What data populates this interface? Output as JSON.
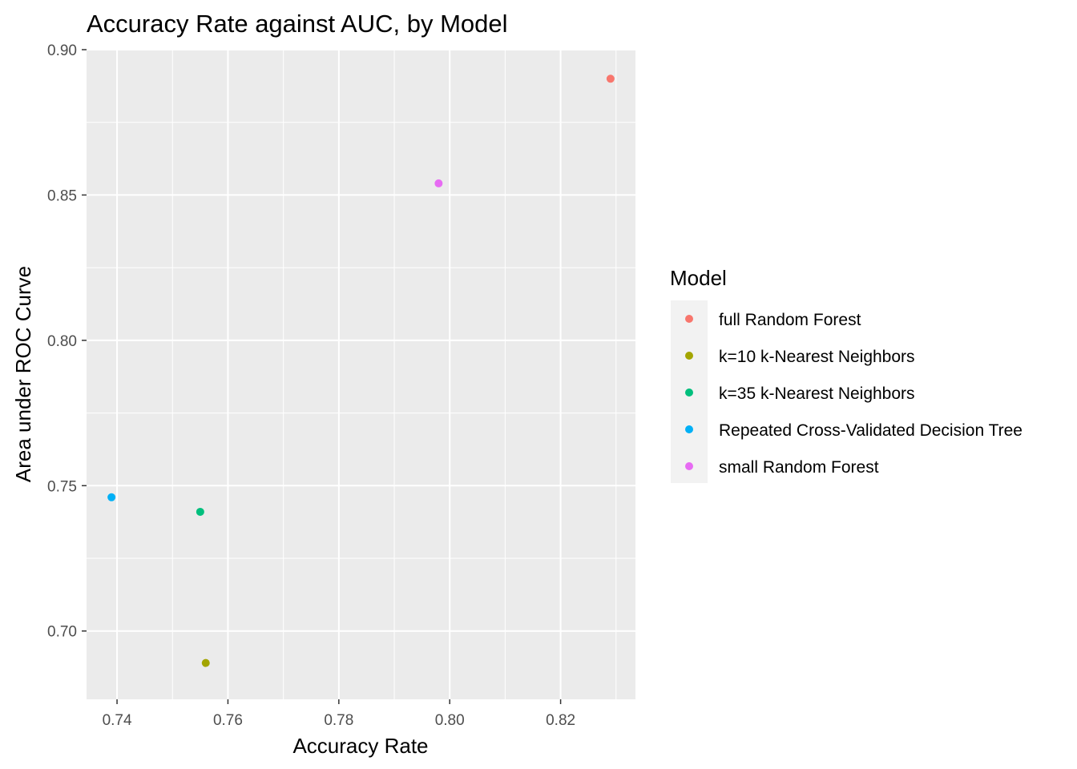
{
  "chart_data": {
    "type": "scatter",
    "title": "Accuracy Rate against AUC, by Model",
    "xlabel": "Accuracy Rate",
    "ylabel": "Area under ROC Curve",
    "xlim": [
      0.7345,
      0.8335
    ],
    "ylim": [
      0.6765,
      0.9
    ],
    "x_ticks": [
      0.74,
      0.76,
      0.78,
      0.8,
      0.82
    ],
    "x_tick_labels": [
      "0.74",
      "0.76",
      "0.78",
      "0.80",
      "0.82"
    ],
    "y_ticks": [
      0.7,
      0.75,
      0.8,
      0.85,
      0.9
    ],
    "y_tick_labels": [
      "0.70",
      "0.75",
      "0.80",
      "0.85",
      "0.90"
    ],
    "grid": true,
    "legend": {
      "title": "Model",
      "position": "right"
    },
    "series": [
      {
        "name": "full Random Forest",
        "color": "#F8766D",
        "x": 0.829,
        "y": 0.89
      },
      {
        "name": "k=10 k-Nearest Neighbors",
        "color": "#A3A500",
        "x": 0.756,
        "y": 0.689
      },
      {
        "name": "k=35 k-Nearest Neighbors",
        "color": "#00BF7D",
        "x": 0.755,
        "y": 0.741
      },
      {
        "name": "Repeated Cross-Validated Decision Tree",
        "color": "#00B0F6",
        "x": 0.739,
        "y": 0.746
      },
      {
        "name": "small Random Forest",
        "color": "#E76BF3",
        "x": 0.798,
        "y": 0.854
      }
    ]
  }
}
